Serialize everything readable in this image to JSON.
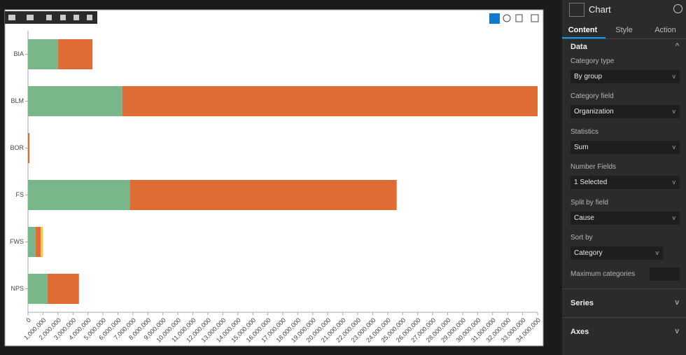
{
  "chart_data": {
    "type": "hbar-stacked",
    "categories": [
      "BIA",
      "BLM",
      "BOR",
      "FS",
      "FWS",
      "NPS"
    ],
    "series": [
      {
        "color": "#79b68a",
        "values": [
          2000000,
          6300000,
          0,
          6800000,
          500000,
          1300000
        ]
      },
      {
        "color": "#e06c35",
        "values": [
          2300000,
          27700000,
          100000,
          17800000,
          350000,
          2100000
        ]
      },
      {
        "color": "#f2c94c",
        "values": [
          0,
          0,
          0,
          0,
          150000,
          0
        ]
      }
    ],
    "xlim": [
      0,
      34000000
    ],
    "xticks": [
      0,
      {
        "value": 1000000,
        "label": "1,000,000"
      },
      {
        "value": 2000000,
        "label": "2,000,000"
      },
      {
        "value": 3000000,
        "label": "3,000,000"
      },
      {
        "value": 4000000,
        "label": "4,000,000"
      },
      {
        "value": 5000000,
        "label": "5,000,000"
      },
      {
        "value": 6000000,
        "label": "6,000,000"
      },
      {
        "value": 7000000,
        "label": "7,000,000"
      },
      {
        "value": 8000000,
        "label": "8,000,000"
      },
      {
        "value": 9000000,
        "label": "9,000,000"
      },
      {
        "value": 10000000,
        "label": "10,000,000"
      },
      {
        "value": 11000000,
        "label": "11,000,000"
      },
      {
        "value": 12000000,
        "label": "12,000,000"
      },
      {
        "value": 13000000,
        "label": "13,000,000"
      },
      {
        "value": 14000000,
        "label": "14,000,000"
      },
      {
        "value": 15000000,
        "label": "15,000,000"
      },
      {
        "value": 16000000,
        "label": "16,000,000"
      },
      {
        "value": 17000000,
        "label": "17,000,000"
      },
      {
        "value": 18000000,
        "label": "18,000,000"
      },
      {
        "value": 19000000,
        "label": "19,000,000"
      },
      {
        "value": 20000000,
        "label": "20,000,000"
      },
      {
        "value": 21000000,
        "label": "21,000,000"
      },
      {
        "value": 22000000,
        "label": "22,000,000"
      },
      {
        "value": 23000000,
        "label": "23,000,000"
      },
      {
        "value": 24000000,
        "label": "24,000,000"
      },
      {
        "value": 25000000,
        "label": "25,000,000"
      },
      {
        "value": 26000000,
        "label": "26,000,000"
      },
      {
        "value": 27000000,
        "label": "27,000,000"
      },
      {
        "value": 28000000,
        "label": "28,000,000"
      },
      {
        "value": 29000000,
        "label": "29,000,000"
      },
      {
        "value": 30000000,
        "label": "30,000,000"
      },
      {
        "value": 31000000,
        "label": "31,000,000"
      },
      {
        "value": 32000000,
        "label": "32,000,000"
      },
      {
        "value": 33000000,
        "label": "33,000,000"
      },
      {
        "value": 34000000,
        "label": "34,000,000"
      }
    ]
  },
  "panel": {
    "title": "Chart",
    "tabs": [
      "Content",
      "Style",
      "Action"
    ],
    "section": "Data",
    "fields": [
      {
        "label": "Category type",
        "value": "By group"
      },
      {
        "label": "Category field",
        "value": "Organization"
      },
      {
        "label": "Statistics",
        "value": "Sum"
      },
      {
        "label": "Number Fields",
        "value": "1 Selected"
      },
      {
        "label": "Split by field",
        "value": "Cause"
      },
      {
        "label": "Sort by",
        "value": "Category"
      }
    ],
    "max_label": "Maximum categories",
    "collapsed": [
      "Series",
      "Axes"
    ]
  }
}
